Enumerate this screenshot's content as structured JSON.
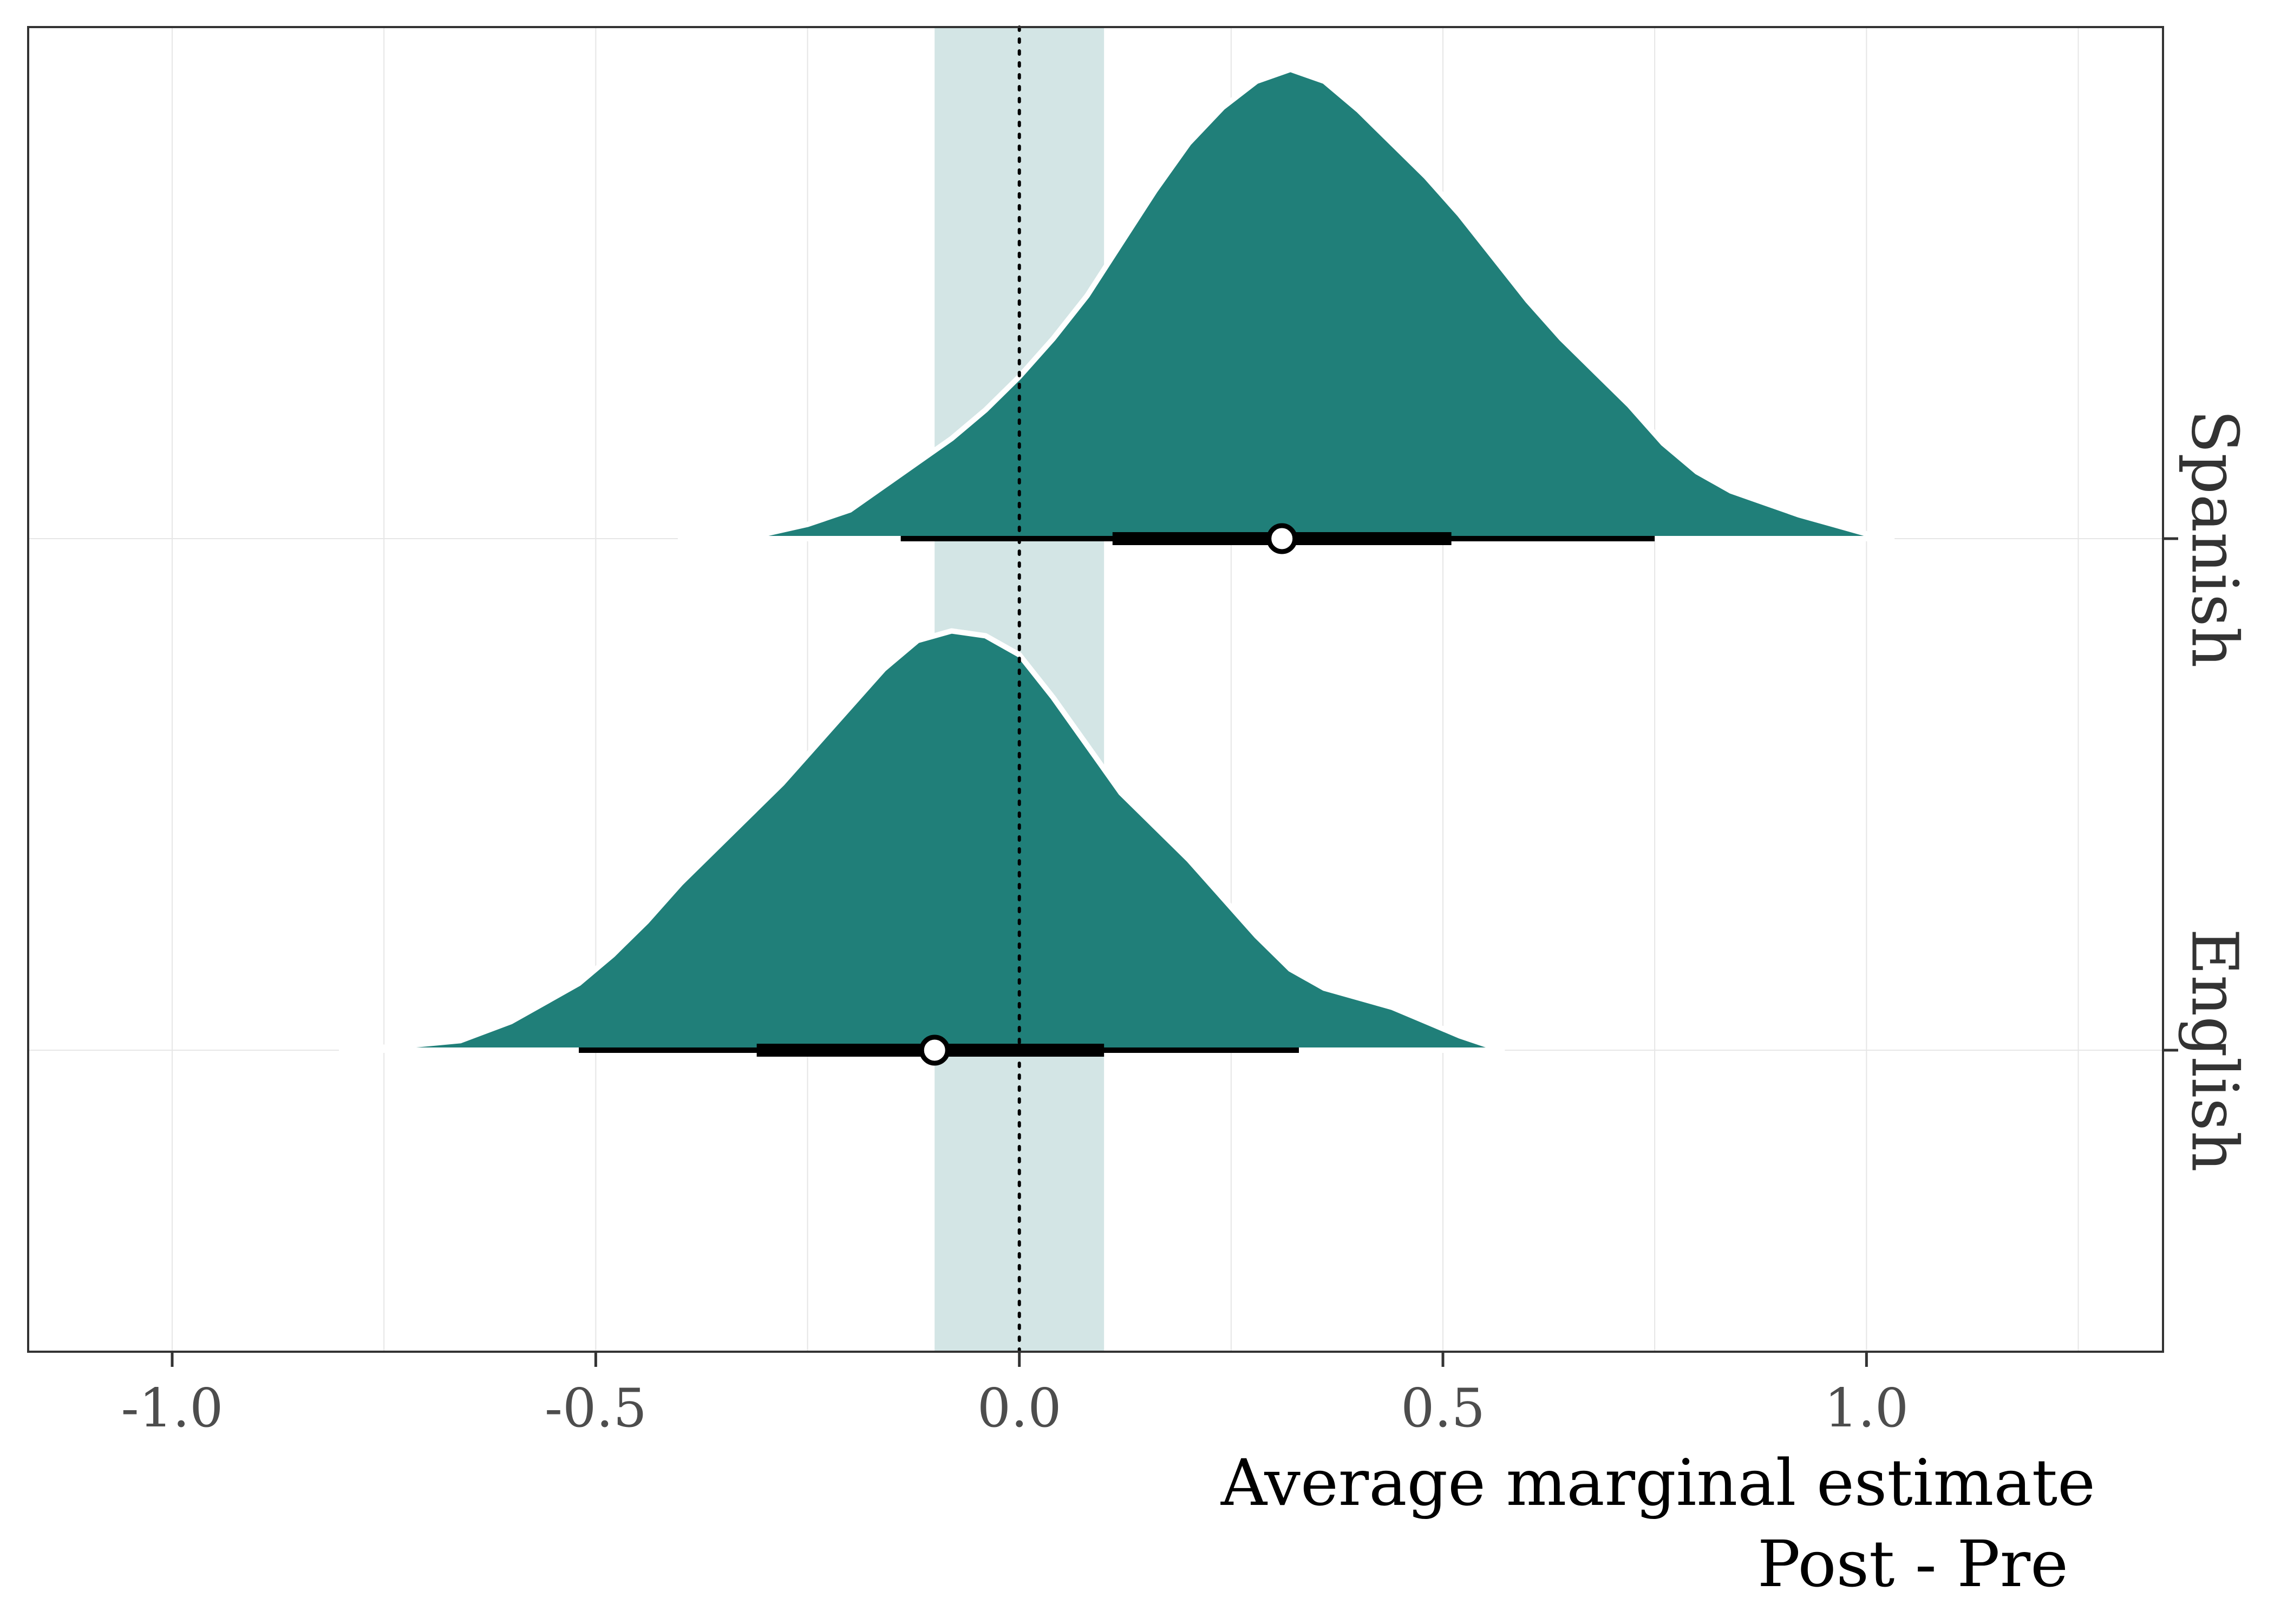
{
  "chart_data": {
    "type": "halfeye",
    "title": "",
    "xlabel": "Average marginal estimate",
    "xlabel_line2": "Post - Pre",
    "ylabel": "",
    "xlim": [
      -1.17,
      1.35
    ],
    "xticks": [
      -1.0,
      -0.5,
      0.0,
      0.5,
      1.0
    ],
    "xtick_labels": [
      "-1.0",
      "-0.5",
      "0.0",
      "0.5",
      "1.0"
    ],
    "minor_gridlines": [
      -0.75,
      -0.25,
      0.25,
      0.75,
      1.25
    ],
    "reference_line": 0.0,
    "rope": [
      -0.1,
      0.1
    ],
    "grid": true,
    "legend": "none",
    "colors": {
      "density": "#207F79",
      "rope": "#D3E5E5",
      "grid": "#E6E6E6",
      "interval": "#000000",
      "point_fill": "#FFFFFF"
    },
    "series": [
      {
        "name": "Spanish",
        "point": 0.31,
        "interval_66": [
          0.11,
          0.51
        ],
        "interval_95": [
          -0.14,
          0.75
        ],
        "density": [
          [
            -0.4,
            0.0
          ],
          [
            -0.3,
            0.01
          ],
          [
            -0.25,
            0.03
          ],
          [
            -0.2,
            0.06
          ],
          [
            -0.16,
            0.11
          ],
          [
            -0.12,
            0.16
          ],
          [
            -0.08,
            0.21
          ],
          [
            -0.04,
            0.27
          ],
          [
            0.0,
            0.34
          ],
          [
            0.04,
            0.42
          ],
          [
            0.08,
            0.51
          ],
          [
            0.12,
            0.62
          ],
          [
            0.16,
            0.73
          ],
          [
            0.2,
            0.83
          ],
          [
            0.24,
            0.905
          ],
          [
            0.28,
            0.96
          ],
          [
            0.32,
            0.985
          ],
          [
            0.36,
            0.96
          ],
          [
            0.4,
            0.9
          ],
          [
            0.44,
            0.83
          ],
          [
            0.48,
            0.76
          ],
          [
            0.52,
            0.68
          ],
          [
            0.56,
            0.59
          ],
          [
            0.6,
            0.5
          ],
          [
            0.64,
            0.42
          ],
          [
            0.68,
            0.35
          ],
          [
            0.72,
            0.28
          ],
          [
            0.76,
            0.2
          ],
          [
            0.8,
            0.14
          ],
          [
            0.84,
            0.1
          ],
          [
            0.88,
            0.075
          ],
          [
            0.92,
            0.05
          ],
          [
            0.96,
            0.03
          ],
          [
            1.0,
            0.01
          ],
          [
            1.03,
            0.0
          ]
        ]
      },
      {
        "name": "English",
        "point": -0.1,
        "interval_66": [
          -0.31,
          0.1
        ],
        "interval_95": [
          -0.52,
          0.33
        ],
        "density": [
          [
            -0.8,
            0.0
          ],
          [
            -0.72,
            0.01
          ],
          [
            -0.66,
            0.02
          ],
          [
            -0.6,
            0.06
          ],
          [
            -0.56,
            0.1
          ],
          [
            -0.52,
            0.14
          ],
          [
            -0.48,
            0.2
          ],
          [
            -0.44,
            0.27
          ],
          [
            -0.4,
            0.35
          ],
          [
            -0.36,
            0.42
          ],
          [
            -0.32,
            0.49
          ],
          [
            -0.28,
            0.56
          ],
          [
            -0.24,
            0.64
          ],
          [
            -0.2,
            0.72
          ],
          [
            -0.16,
            0.8
          ],
          [
            -0.12,
            0.86
          ],
          [
            -0.08,
            0.88
          ],
          [
            -0.04,
            0.87
          ],
          [
            0.0,
            0.83
          ],
          [
            0.04,
            0.74
          ],
          [
            0.08,
            0.64
          ],
          [
            0.12,
            0.54
          ],
          [
            0.16,
            0.47
          ],
          [
            0.2,
            0.4
          ],
          [
            0.24,
            0.32
          ],
          [
            0.28,
            0.24
          ],
          [
            0.32,
            0.17
          ],
          [
            0.36,
            0.13
          ],
          [
            0.4,
            0.11
          ],
          [
            0.44,
            0.09
          ],
          [
            0.48,
            0.06
          ],
          [
            0.52,
            0.03
          ],
          [
            0.57,
            0.0
          ]
        ]
      }
    ]
  }
}
